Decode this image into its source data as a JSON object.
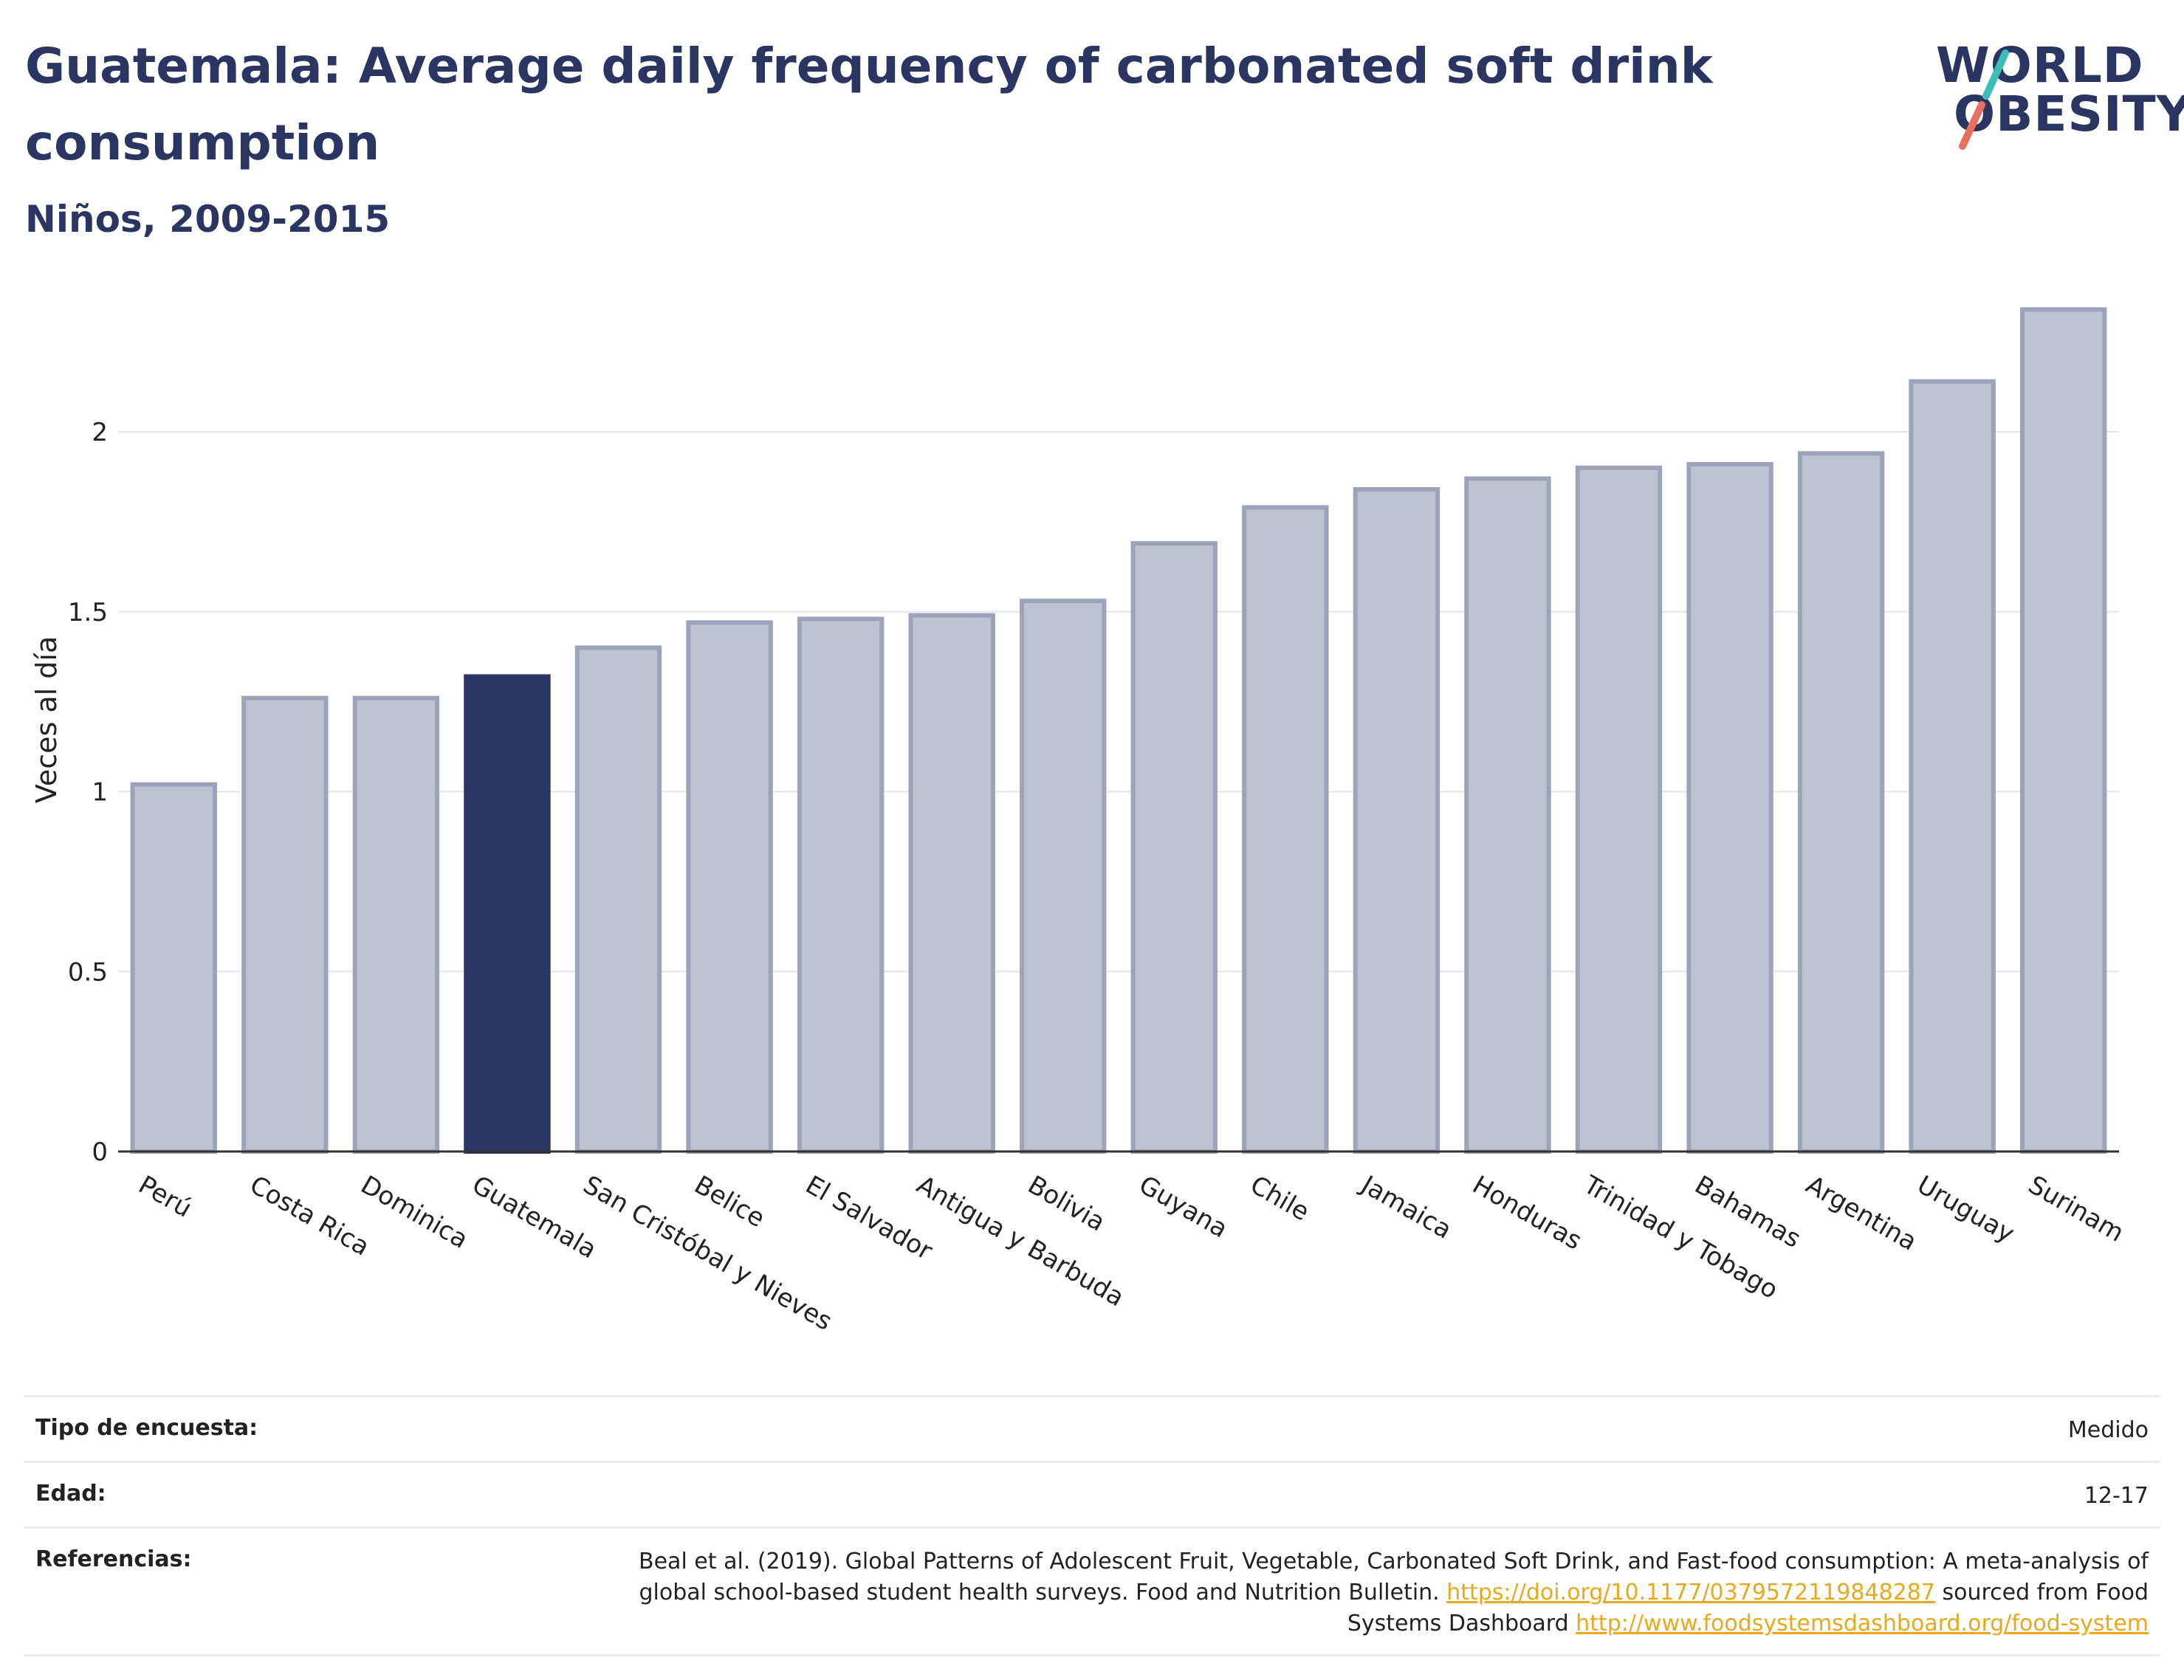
{
  "header": {
    "title": "Guatemala: Average daily frequency of carbonated soft drink consumption",
    "subtitle": "Niños, 2009-2015"
  },
  "logo": {
    "line1": "WORLD",
    "line2": "OBESITY",
    "text": "WORLD OBESITY"
  },
  "colors": {
    "bar": "#bec2d1",
    "bar_border": "#9da3ba",
    "highlight": "#2b3561",
    "accent_teal": "#3dbdb8",
    "accent_coral": "#e8705f",
    "link": "#e8a91c"
  },
  "chart_data": {
    "type": "bar",
    "title": "Guatemala: Average daily frequency of carbonated soft drink consumption",
    "subtitle": "Niños, 2009-2015",
    "ylabel": "Veces al día",
    "xlabel": "",
    "ylim": [
      0,
      2.4
    ],
    "yticks": [
      0,
      0.5,
      1,
      1.5,
      2
    ],
    "ytick_labels": [
      "0",
      "0.5",
      "1",
      "1.5",
      "2"
    ],
    "grid": true,
    "highlight": "Guatemala",
    "categories": [
      "Perú",
      "Costa Rica",
      "Dominica",
      "Guatemala",
      "San Cristóbal y Nieves",
      "Belice",
      "El Salvador",
      "Antigua y Barbuda",
      "Bolivia",
      "Guyana",
      "Chile",
      "Jamaica",
      "Honduras",
      "Trinidad y Tobago",
      "Bahamas",
      "Argentina",
      "Uruguay",
      "Surinam"
    ],
    "values": [
      1.02,
      1.26,
      1.26,
      1.32,
      1.4,
      1.47,
      1.48,
      1.49,
      1.53,
      1.69,
      1.79,
      1.84,
      1.87,
      1.9,
      1.91,
      1.94,
      2.14,
      2.34
    ]
  },
  "info": {
    "survey_label": "Tipo de encuesta:",
    "survey_value": "Medido",
    "age_label": "Edad:",
    "age_value": "12-17",
    "ref_label": "Referencias:",
    "ref_text": "Beal et al. (2019). Global Patterns of Adolescent Fruit, Vegetable, Carbonated Soft Drink, and Fast-food consumption: A meta-analysis of global school-based student health surveys. Food and Nutrition Bulletin.",
    "ref_link1": "https://doi.org/10.1177/0379572119848287",
    "ref_mid": "sourced from Food Systems Dashboard",
    "ref_link2": "http://www.foodsystemsdashboard.org/food-system"
  }
}
